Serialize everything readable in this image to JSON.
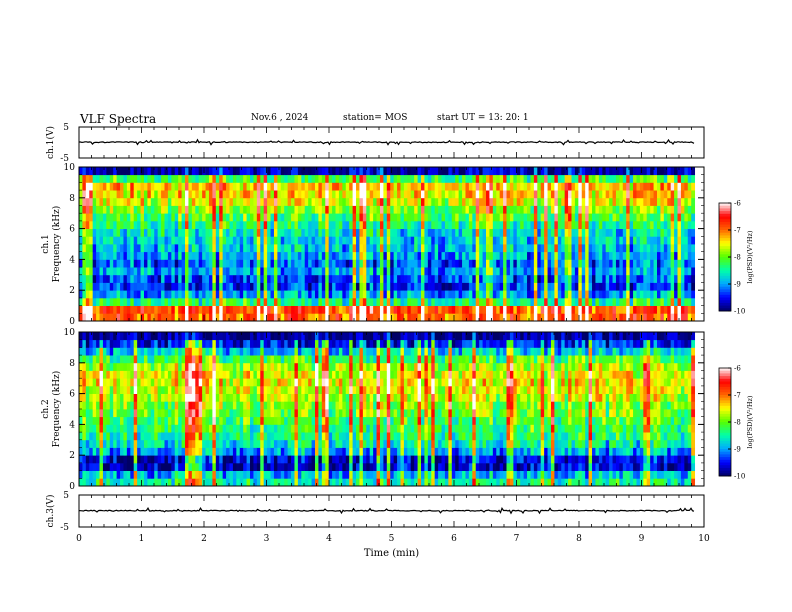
{
  "header": {
    "title": "VLF Spectra",
    "date": "Nov.6 , 2024",
    "station": "station= MOS",
    "start": "start UT = 13: 20: 1"
  },
  "colors": {
    "colormap": [
      "#000066",
      "#0000ff",
      "#00aaff",
      "#00ffaa",
      "#55ff00",
      "#ffff00",
      "#ff6600",
      "#ff0000",
      "#ffffff"
    ],
    "trace": "#000000"
  },
  "chart_data": [
    {
      "type": "line",
      "panel": "ch1-waveform",
      "ylabel": "ch.1(V)",
      "ylim": [
        -5,
        5
      ],
      "yticks": [
        "5",
        "-5"
      ],
      "series": [
        {
          "x": [
            0,
            9.85
          ],
          "y": [
            0.1,
            0.1
          ]
        }
      ]
    },
    {
      "type": "heatmap",
      "panel": "ch1-spectrogram",
      "ylabel": "ch.1\nFrequency (kHz)",
      "xlim": [
        0,
        10
      ],
      "ylim": [
        0,
        10
      ],
      "yticks": [
        "0",
        "2",
        "4",
        "6",
        "8",
        "10"
      ],
      "data_xlim": [
        0,
        9.85
      ],
      "colorbar": {
        "label": "log(PSD)(V²/Hz)",
        "range": [
          -10,
          -6
        ],
        "ticks": [
          "-6",
          "-7",
          "-8",
          "-9",
          "-10"
        ]
      },
      "intensity_profile": [
        {
          "freq": 0.25,
          "log_psd": -6.9
        },
        {
          "freq": 0.75,
          "log_psd": -6.8
        },
        {
          "freq": 1.25,
          "log_psd": -8.4
        },
        {
          "freq": 1.75,
          "log_psd": -9.0
        },
        {
          "freq": 2.25,
          "log_psd": -9.4
        },
        {
          "freq": 2.75,
          "log_psd": -9.3
        },
        {
          "freq": 3.25,
          "log_psd": -9.0
        },
        {
          "freq": 3.75,
          "log_psd": -9.2
        },
        {
          "freq": 4.25,
          "log_psd": -9.0
        },
        {
          "freq": 4.75,
          "log_psd": -8.8
        },
        {
          "freq": 5.25,
          "log_psd": -8.8
        },
        {
          "freq": 5.75,
          "log_psd": -8.7
        },
        {
          "freq": 6.25,
          "log_psd": -8.4
        },
        {
          "freq": 6.75,
          "log_psd": -8.2
        },
        {
          "freq": 7.25,
          "log_psd": -7.9
        },
        {
          "freq": 7.75,
          "log_psd": -7.6
        },
        {
          "freq": 8.25,
          "log_psd": -7.4
        },
        {
          "freq": 8.75,
          "log_psd": -7.3
        },
        {
          "freq": 9.25,
          "log_psd": -8.2
        },
        {
          "freq": 9.75,
          "log_psd": -9.8
        }
      ]
    },
    {
      "type": "heatmap",
      "panel": "ch2-spectrogram",
      "ylabel": "ch.2\nFrequency (kHz)",
      "xlim": [
        0,
        10
      ],
      "ylim": [
        0,
        10
      ],
      "yticks": [
        "0",
        "2",
        "4",
        "6",
        "8",
        "10"
      ],
      "data_xlim": [
        0,
        9.85
      ],
      "colorbar": {
        "label": "log(PSD)(V²/Hz)",
        "range": [
          -10,
          -6
        ],
        "ticks": [
          "-6",
          "-7",
          "-8",
          "-9",
          "-10"
        ]
      },
      "intensity_profile": [
        {
          "freq": 0.25,
          "log_psd": -8.5
        },
        {
          "freq": 0.75,
          "log_psd": -8.9
        },
        {
          "freq": 1.25,
          "log_psd": -9.7
        },
        {
          "freq": 1.75,
          "log_psd": -9.6
        },
        {
          "freq": 2.25,
          "log_psd": -9.0
        },
        {
          "freq": 2.75,
          "log_psd": -8.6
        },
        {
          "freq": 3.25,
          "log_psd": -8.4
        },
        {
          "freq": 3.75,
          "log_psd": -8.3
        },
        {
          "freq": 4.25,
          "log_psd": -8.2
        },
        {
          "freq": 4.75,
          "log_psd": -8.0
        },
        {
          "freq": 5.25,
          "log_psd": -7.9
        },
        {
          "freq": 5.75,
          "log_psd": -7.7
        },
        {
          "freq": 6.25,
          "log_psd": -7.6
        },
        {
          "freq": 6.75,
          "log_psd": -7.5
        },
        {
          "freq": 7.25,
          "log_psd": -7.6
        },
        {
          "freq": 7.75,
          "log_psd": -7.8
        },
        {
          "freq": 8.25,
          "log_psd": -8.2
        },
        {
          "freq": 8.75,
          "log_psd": -8.8
        },
        {
          "freq": 9.25,
          "log_psd": -9.5
        },
        {
          "freq": 9.75,
          "log_psd": -9.9
        }
      ]
    },
    {
      "type": "line",
      "panel": "ch3-waveform",
      "ylabel": "ch.3(V)",
      "ylim": [
        -5,
        5
      ],
      "yticks": [
        "5",
        "-5"
      ],
      "xlabel": "Time (min)",
      "xlim": [
        0,
        10
      ],
      "xticks": [
        "0",
        "1",
        "2",
        "3",
        "4",
        "5",
        "6",
        "7",
        "8",
        "9",
        "10"
      ],
      "series": [
        {
          "x": [
            0,
            9.85
          ],
          "y": [
            0.1,
            0.1
          ]
        }
      ]
    }
  ]
}
